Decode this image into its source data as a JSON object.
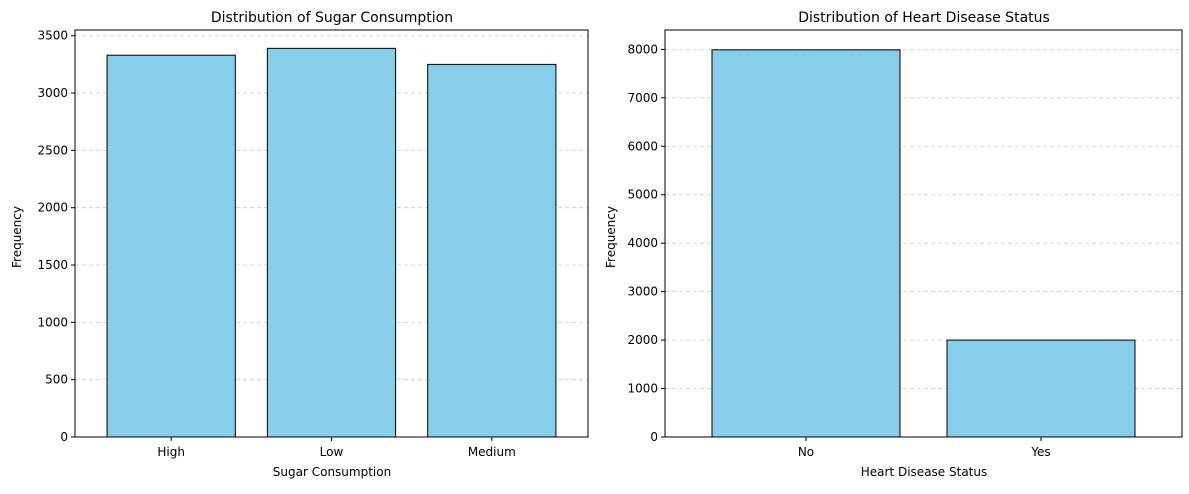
{
  "colors": {
    "bar_fill": "#87ceeb",
    "bar_edge": "#000000",
    "grid": "#cccccc",
    "axis": "#000000",
    "text": "#000000"
  },
  "chart_data": [
    {
      "type": "bar",
      "title": "Distribution of Sugar Consumption",
      "xlabel": "Sugar Consumption",
      "ylabel": "Frequency",
      "categories": [
        "High",
        "Low",
        "Medium"
      ],
      "values": [
        3330,
        3390,
        3250
      ],
      "ylim": [
        0,
        3550
      ],
      "yticks": [
        0,
        500,
        1000,
        1500,
        2000,
        2500,
        3000,
        3500
      ],
      "grid": "y-dashed",
      "legend": "none"
    },
    {
      "type": "bar",
      "title": "Distribution of Heart Disease Status",
      "xlabel": "Heart Disease Status",
      "ylabel": "Frequency",
      "categories": [
        "No",
        "Yes"
      ],
      "values": [
        7990,
        2000
      ],
      "ylim": [
        0,
        8400
      ],
      "yticks": [
        0,
        1000,
        2000,
        3000,
        4000,
        5000,
        6000,
        7000,
        8000
      ],
      "grid": "y-dashed",
      "legend": "none"
    }
  ]
}
